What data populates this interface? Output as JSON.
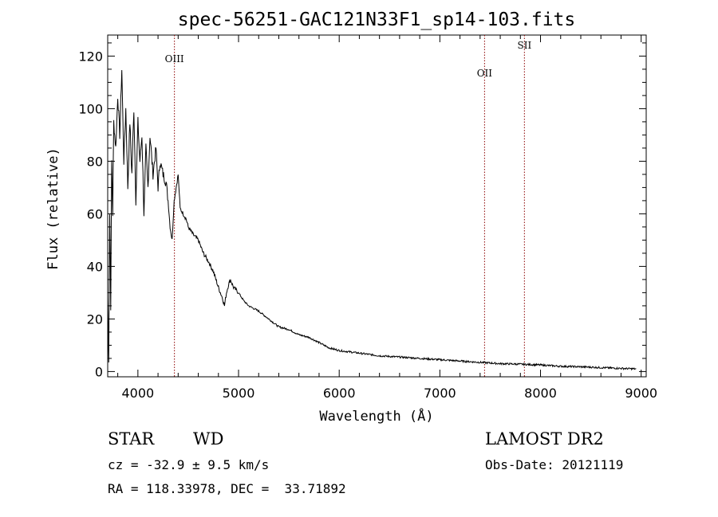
{
  "chart_data": {
    "type": "line",
    "title": "spec-56251-GAC121N33F1_sp14-103.fits",
    "xlabel": "Wavelength (Å)",
    "ylabel": "Flux (relative)",
    "xlim": [
      3700,
      9050
    ],
    "ylim": [
      -2,
      128
    ],
    "xticks": [
      "4000",
      "5000",
      "6000",
      "7000",
      "8000",
      "9000"
    ],
    "yticks": [
      "0",
      "20",
      "40",
      "60",
      "80",
      "100",
      "120"
    ],
    "grid": false,
    "series": [
      {
        "x": [
          3700,
          3710,
          3720,
          3730,
          3740,
          3750,
          3760,
          3780,
          3800,
          3820,
          3840,
          3860,
          3880,
          3900,
          3920,
          3940,
          3960,
          3980,
          4000,
          4020,
          4040,
          4060,
          4080,
          4100,
          4120,
          4150,
          4180,
          4200,
          4220,
          4250,
          4280,
          4300,
          4320,
          4340,
          4360,
          4380,
          4400,
          4420,
          4450,
          4480,
          4500,
          4550,
          4600,
          4650,
          4700,
          4750,
          4800,
          4820,
          4840,
          4860,
          4880,
          4900,
          4920,
          4950,
          5000,
          5050,
          5100,
          5200,
          5300,
          5400,
          5500,
          5600,
          5700,
          5800,
          5900,
          6000,
          6200,
          6400,
          6600,
          6800,
          7000,
          7200,
          7400,
          7600,
          7800,
          8000,
          8200,
          8400,
          8600,
          8800,
          8950
        ],
        "y": [
          28,
          5,
          60,
          25,
          80,
          60,
          95,
          85,
          105,
          90,
          115,
          80,
          100,
          70,
          95,
          75,
          100,
          65,
          95,
          80,
          90,
          60,
          85,
          70,
          90,
          75,
          85,
          70,
          80,
          75,
          72,
          65,
          55,
          50,
          65,
          70,
          75,
          62,
          60,
          58,
          55,
          52,
          50,
          45,
          42,
          38,
          32,
          30,
          28,
          25,
          30,
          33,
          35,
          32,
          30,
          27,
          25,
          23,
          20,
          17,
          16,
          14,
          13,
          11,
          9,
          8,
          7,
          6,
          5.5,
          5,
          4.5,
          4,
          3.5,
          3,
          2.8,
          2.5,
          2,
          1.8,
          1.5,
          1.2,
          1
        ]
      }
    ],
    "annotations": [
      {
        "label": "OIII",
        "x": 4363
      },
      {
        "label": "OII",
        "x": 7444
      },
      {
        "label": "SII",
        "x": 7840
      }
    ]
  },
  "info": {
    "object_class": "STAR",
    "subclass": "WD",
    "survey": "LAMOST DR2",
    "cz": "cz = -32.9 ± 9.5 km/s",
    "obs_date": "Obs-Date: 20121119",
    "coords": "RA = 118.33978, DEC =  33.71892"
  }
}
